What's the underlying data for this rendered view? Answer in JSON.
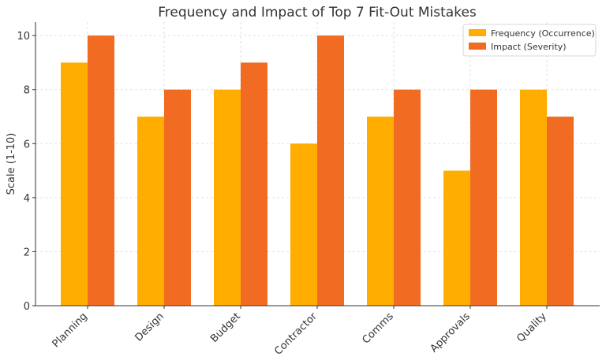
{
  "chart_data": {
    "type": "bar",
    "title": "Frequency and Impact of Top 7 Fit-Out Mistakes",
    "xlabel": "",
    "ylabel": "Scale (1-10)",
    "categories": [
      "Planning",
      "Design",
      "Budget",
      "Contractor",
      "Comms",
      "Approvals",
      "Quality"
    ],
    "series": [
      {
        "name": "Frequency (Occurrence)",
        "color": "#ffad00",
        "values": [
          9,
          7,
          8,
          6,
          7,
          5,
          8
        ]
      },
      {
        "name": "Impact (Severity)",
        "color": "#f26b22",
        "values": [
          10,
          8,
          9,
          10,
          8,
          8,
          7
        ]
      }
    ],
    "ylim": [
      0,
      10.5
    ],
    "yticks": [
      "0",
      "2",
      "4",
      "6",
      "8",
      "10"
    ],
    "grid": true,
    "legend_position": "top-right"
  }
}
